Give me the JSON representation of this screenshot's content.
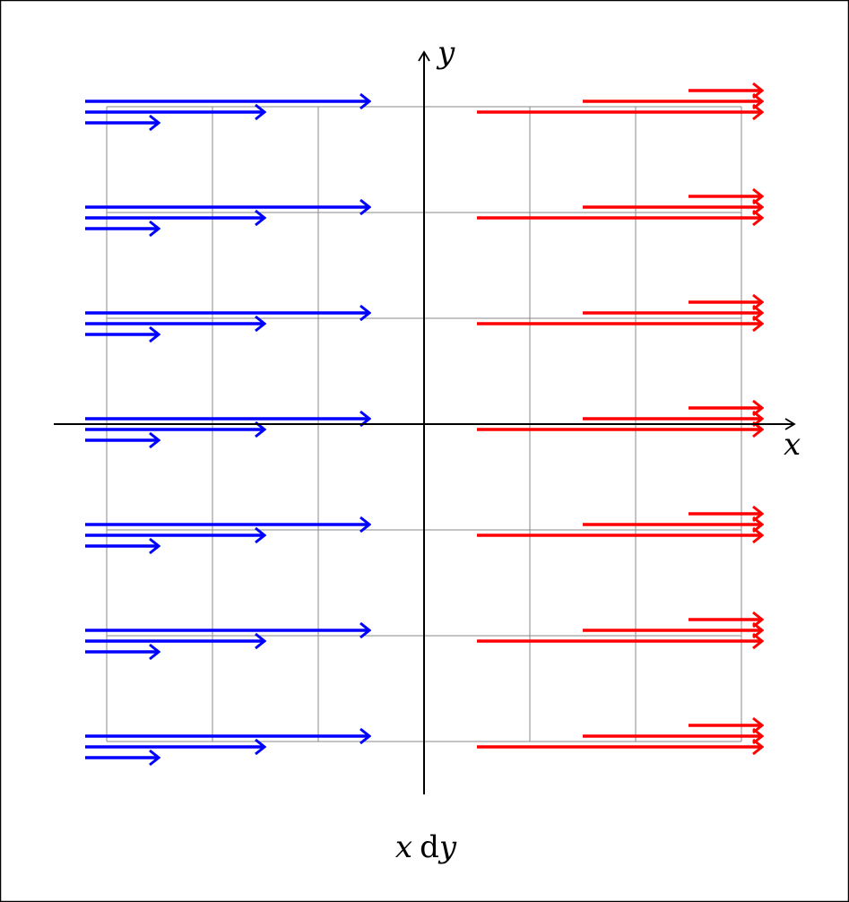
{
  "axes": {
    "x_label": "x",
    "y_label": "y"
  },
  "caption": {
    "factor": "x",
    "differential": "d",
    "variable": "y"
  }
}
